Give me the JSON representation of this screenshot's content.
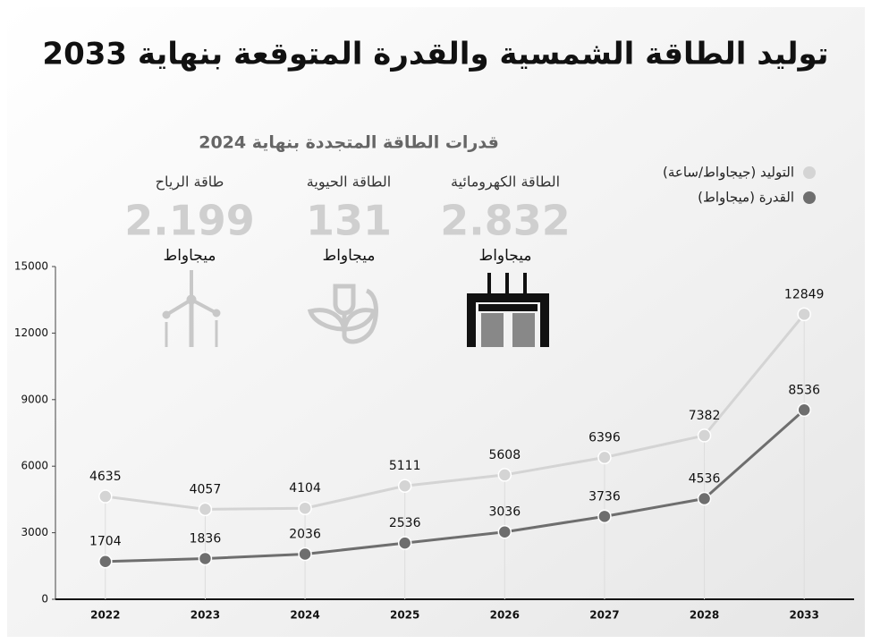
{
  "title": "توليد الطاقة الشمسية والقدرة المتوقعة بنهاية 2033",
  "panel": {
    "title": "قدرات الطاقة المتجددة بنهاية 2024",
    "stats": [
      {
        "name": "الطاقة الكهرومائية",
        "value": "2.832",
        "unit": "ميجاواط"
      },
      {
        "name": "الطاقة الحيوية",
        "value": "131",
        "unit": "ميجاواط"
      },
      {
        "name": "طاقة الرياح",
        "value": "2.199",
        "unit": "ميجاواط"
      }
    ]
  },
  "chart_data": {
    "type": "line",
    "categories": [
      "2022",
      "2023",
      "2024",
      "2025",
      "2026",
      "2027",
      "2028",
      "2033"
    ],
    "series": [
      {
        "name": "التوليد (جيجاواط/ساعة)",
        "color": "#d4d4d4",
        "values": [
          4635,
          4057,
          4104,
          5111,
          5608,
          6396,
          7382,
          12849
        ]
      },
      {
        "name": "القدرة (ميجاواط)",
        "color": "#6e6e6e",
        "values": [
          1704,
          1836,
          2036,
          2536,
          3036,
          3736,
          4536,
          8536
        ]
      }
    ],
    "ylim": [
      0,
      15000
    ],
    "yticks": [
      0,
      3000,
      6000,
      9000,
      12000,
      15000
    ],
    "grid": false,
    "legend": "top-right"
  }
}
